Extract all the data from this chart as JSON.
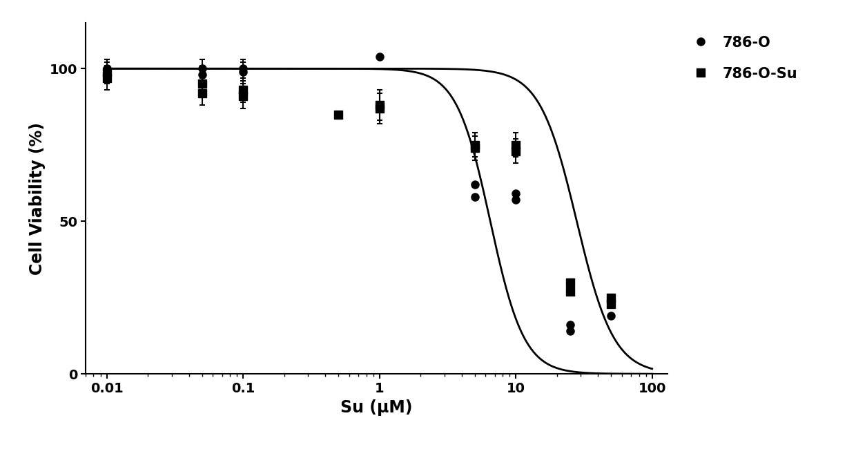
{
  "title": "",
  "xlabel": "Su (μM)",
  "ylabel": "Cell Viability (%)",
  "background_color": "#ffffff",
  "ylim": [
    0,
    115
  ],
  "yticks": [
    0,
    50,
    100
  ],
  "series": {
    "786O": {
      "label": "786-O",
      "marker": "o",
      "color": "#000000",
      "markersize": 8,
      "x": [
        0.01,
        0.01,
        0.05,
        0.05,
        0.1,
        0.1,
        1.0,
        5.0,
        5.0,
        10.0,
        10.0,
        25.0,
        25.0,
        50.0
      ],
      "y": [
        100,
        99,
        100,
        98,
        100,
        99,
        104,
        58,
        62,
        59,
        57,
        14,
        16,
        19
      ],
      "yerr": [
        3,
        3,
        3,
        3,
        3,
        3,
        0,
        0,
        0,
        0,
        0,
        0,
        0,
        0
      ],
      "ic50": 6.5,
      "hill": 3.5
    },
    "786OSu": {
      "label": "786-O-Su",
      "marker": "s",
      "color": "#000000",
      "markersize": 8,
      "x": [
        0.01,
        0.01,
        0.05,
        0.05,
        0.1,
        0.1,
        0.5,
        1.0,
        1.0,
        5.0,
        5.0,
        10.0,
        10.0,
        25.0,
        25.0,
        50.0,
        50.0
      ],
      "y": [
        99,
        97,
        95,
        92,
        93,
        91,
        85,
        88,
        87,
        75,
        74,
        75,
        73,
        30,
        27,
        25,
        23
      ],
      "yerr": [
        4,
        4,
        4,
        4,
        4,
        4,
        0,
        5,
        5,
        4,
        4,
        4,
        4,
        0,
        0,
        0,
        0
      ],
      "ic50": 28.0,
      "hill": 3.2
    }
  },
  "legend_fontsize": 15,
  "axis_fontsize": 17,
  "tick_fontsize": 14
}
